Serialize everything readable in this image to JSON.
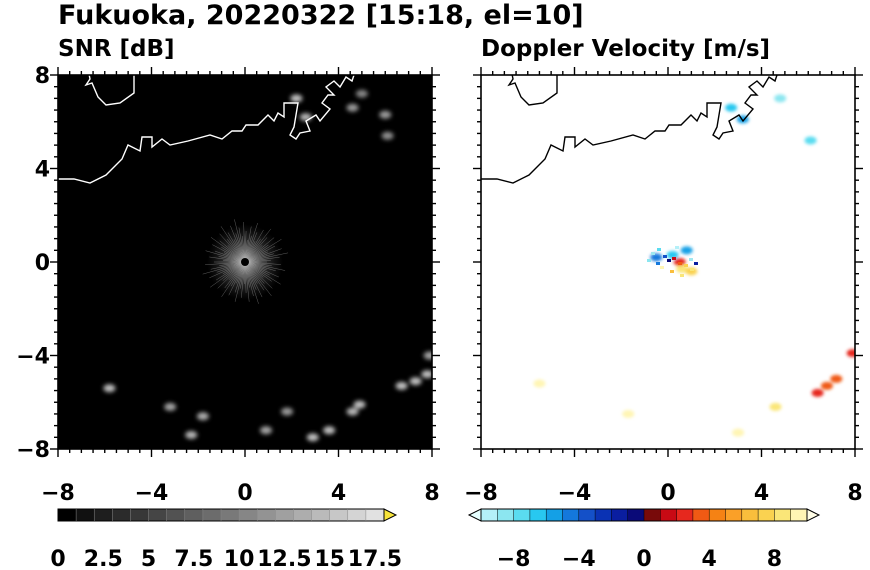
{
  "title": "Fukuoka, 20220322 [15:18, el=10]",
  "chart_data": [
    {
      "type": "heatmap",
      "title": "SNR [dB]",
      "xlim": [
        -8,
        8
      ],
      "ylim": [
        -8,
        8
      ],
      "x_ticks": [
        -8,
        -4,
        0,
        4,
        8
      ],
      "y_ticks": [
        -8,
        -4,
        0,
        4,
        8
      ],
      "x_tick_labels": [
        "−8",
        "−4",
        "0",
        "4",
        "8"
      ],
      "y_tick_labels": [
        "8",
        "4",
        "0",
        "−4",
        "−8"
      ],
      "background_color": "#000000",
      "colorbar": {
        "min": 0,
        "max": 18,
        "extend": "max",
        "labels": [
          "0",
          "2.5",
          "5",
          "7.5",
          "10",
          "12.5",
          "15",
          "17.5"
        ],
        "label_values": [
          0,
          2.5,
          5,
          7.5,
          10,
          12.5,
          15,
          17.5
        ],
        "colors": [
          "#000000",
          "#111111",
          "#1e1e1e",
          "#2b2b2b",
          "#383838",
          "#454545",
          "#525252",
          "#5f5f5f",
          "#6c6c6c",
          "#797979",
          "#868686",
          "#939393",
          "#a0a0a0",
          "#adadad",
          "#bababa",
          "#c7c7c7",
          "#d4d4d4",
          "#e1e1e1"
        ],
        "extend_color": "#f7e43a"
      },
      "echoes": [
        {
          "x": 2.2,
          "y": 7.0,
          "value": 14
        },
        {
          "x": 2.6,
          "y": 6.2,
          "value": 12
        },
        {
          "x": 4.6,
          "y": 6.6,
          "value": 9
        },
        {
          "x": 5.0,
          "y": 7.2,
          "value": 7
        },
        {
          "x": 6.0,
          "y": 6.3,
          "value": 9
        },
        {
          "x": 6.1,
          "y": 5.4,
          "value": 8
        },
        {
          "x": -5.8,
          "y": -5.4,
          "value": 14
        },
        {
          "x": -3.2,
          "y": -6.2,
          "value": 10
        },
        {
          "x": -1.8,
          "y": -6.6,
          "value": 11
        },
        {
          "x": -2.3,
          "y": -7.4,
          "value": 12
        },
        {
          "x": 0.9,
          "y": -7.2,
          "value": 10
        },
        {
          "x": 1.8,
          "y": -6.4,
          "value": 9
        },
        {
          "x": 2.9,
          "y": -7.5,
          "value": 16
        },
        {
          "x": 3.6,
          "y": -7.2,
          "value": 13
        },
        {
          "x": 4.6,
          "y": -6.4,
          "value": 12
        },
        {
          "x": 4.9,
          "y": -6.1,
          "value": 13
        },
        {
          "x": 6.7,
          "y": -5.3,
          "value": 15
        },
        {
          "x": 7.3,
          "y": -5.1,
          "value": 16
        },
        {
          "x": 7.8,
          "y": -4.8,
          "value": 14
        },
        {
          "x": 7.9,
          "y": -4.0,
          "value": 10
        }
      ]
    },
    {
      "type": "heatmap",
      "title": "Doppler Velocity [m/s]",
      "xlim": [
        -8,
        8
      ],
      "ylim": [
        -8,
        8
      ],
      "x_ticks": [
        -8,
        -4,
        0,
        4,
        8
      ],
      "y_ticks": [
        -8,
        -4,
        0,
        4,
        8
      ],
      "x_tick_labels": [
        "−8",
        "−4",
        "0",
        "4",
        "8"
      ],
      "y_tick_labels": [
        "8",
        "4",
        "0",
        "−4",
        "−8"
      ],
      "background_color": "#ffffff",
      "colorbar": {
        "min": -10,
        "max": 10,
        "extend": "both",
        "labels": [
          "−8",
          "−4",
          "0",
          "4",
          "8"
        ],
        "label_values": [
          -8,
          -4,
          0,
          4,
          8
        ],
        "colors": [
          "#b4f0f8",
          "#8ce6f0",
          "#5adcf0",
          "#28c8f0",
          "#14a0e6",
          "#1478dc",
          "#1450c8",
          "#0a32b4",
          "#0a1ea0",
          "#0a0a78",
          "#780a0a",
          "#c80a14",
          "#e6281e",
          "#f05a14",
          "#f58214",
          "#faa028",
          "#fabe3c",
          "#fad250",
          "#fae678",
          "#fff5b4"
        ],
        "extend_low_color": "#e6ffff",
        "extend_high_color": "#fffde6"
      },
      "echoes": [
        {
          "x": 2.7,
          "y": 6.6,
          "value": -7
        },
        {
          "x": 3.2,
          "y": 6.1,
          "value": -6
        },
        {
          "x": 6.1,
          "y": 5.2,
          "value": -8
        },
        {
          "x": 4.8,
          "y": 7.0,
          "value": -9
        },
        {
          "x": 0.2,
          "y": 0.3,
          "value": -7
        },
        {
          "x": 0.8,
          "y": 0.5,
          "value": -6
        },
        {
          "x": -0.5,
          "y": 0.2,
          "value": -5
        },
        {
          "x": 0.5,
          "y": 0.0,
          "value": 2
        },
        {
          "x": 0.6,
          "y": -0.3,
          "value": 8
        },
        {
          "x": 1.0,
          "y": -0.4,
          "value": 7
        },
        {
          "x": 7.2,
          "y": -5.0,
          "value": 3
        },
        {
          "x": 6.8,
          "y": -5.3,
          "value": 3
        },
        {
          "x": 6.4,
          "y": -5.6,
          "value": 2
        },
        {
          "x": 7.9,
          "y": -3.9,
          "value": 2
        },
        {
          "x": 4.6,
          "y": -6.2,
          "value": 8
        },
        {
          "x": 3.0,
          "y": -7.3,
          "value": 9
        },
        {
          "x": -5.5,
          "y": -5.2,
          "value": 9
        },
        {
          "x": -1.7,
          "y": -6.5,
          "value": 9
        }
      ]
    }
  ]
}
